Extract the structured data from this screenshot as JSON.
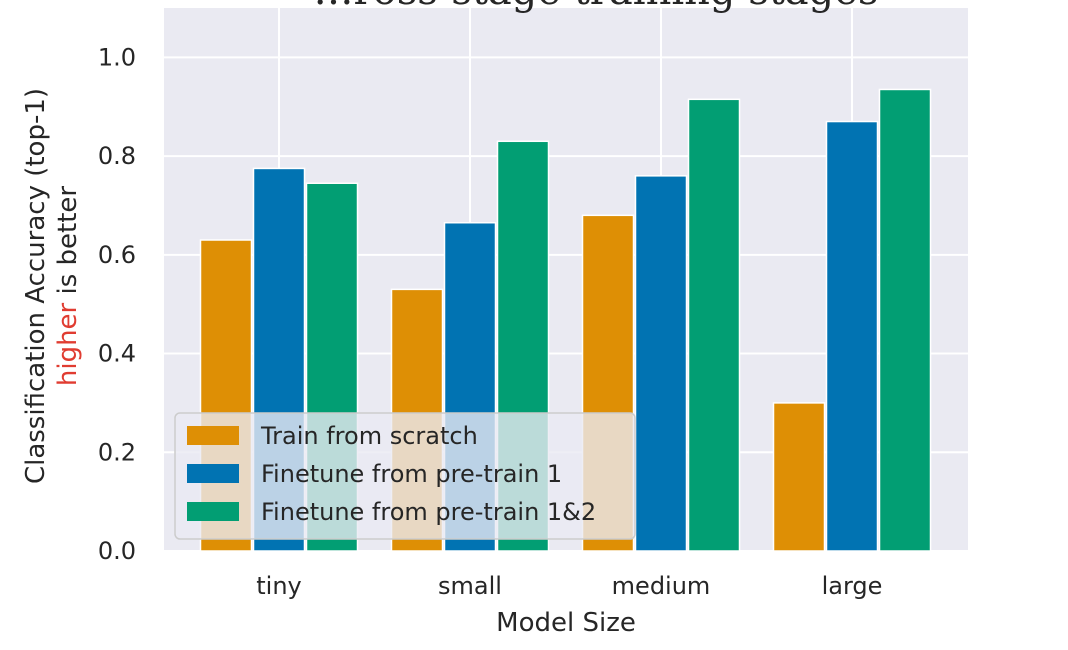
{
  "chart_data": {
    "type": "bar",
    "title": "…ross-stage training stages",
    "xlabel": "Model Size",
    "ylabel_line1": "Classification Accuracy (top-1)",
    "ylabel_line2_highlight": "higher",
    "ylabel_line2_rest": " is better",
    "categories": [
      "tiny",
      "small",
      "medium",
      "large"
    ],
    "series": [
      {
        "name": "Train from scratch",
        "color": "#de8f05",
        "values": [
          0.63,
          0.53,
          0.68,
          0.3
        ]
      },
      {
        "name": "Finetune from pre-train 1",
        "color": "#0173b2",
        "values": [
          0.775,
          0.665,
          0.76,
          0.87
        ]
      },
      {
        "name": "Finetune from pre-train 1&2",
        "color": "#029e73",
        "values": [
          0.745,
          0.83,
          0.915,
          0.935
        ]
      }
    ],
    "ylim": [
      0,
      1.1
    ],
    "yticks": [
      0.0,
      0.2,
      0.4,
      0.6,
      0.8,
      1.0
    ],
    "ytick_labels": [
      "0.0",
      "0.2",
      "0.4",
      "0.6",
      "0.8",
      "1.0"
    ],
    "grid": true,
    "legend_position": "lower-left",
    "colors": {
      "background": "#eaeaf2",
      "grid": "#ffffff",
      "text": "#262626",
      "highlight": "#e03c31"
    }
  }
}
